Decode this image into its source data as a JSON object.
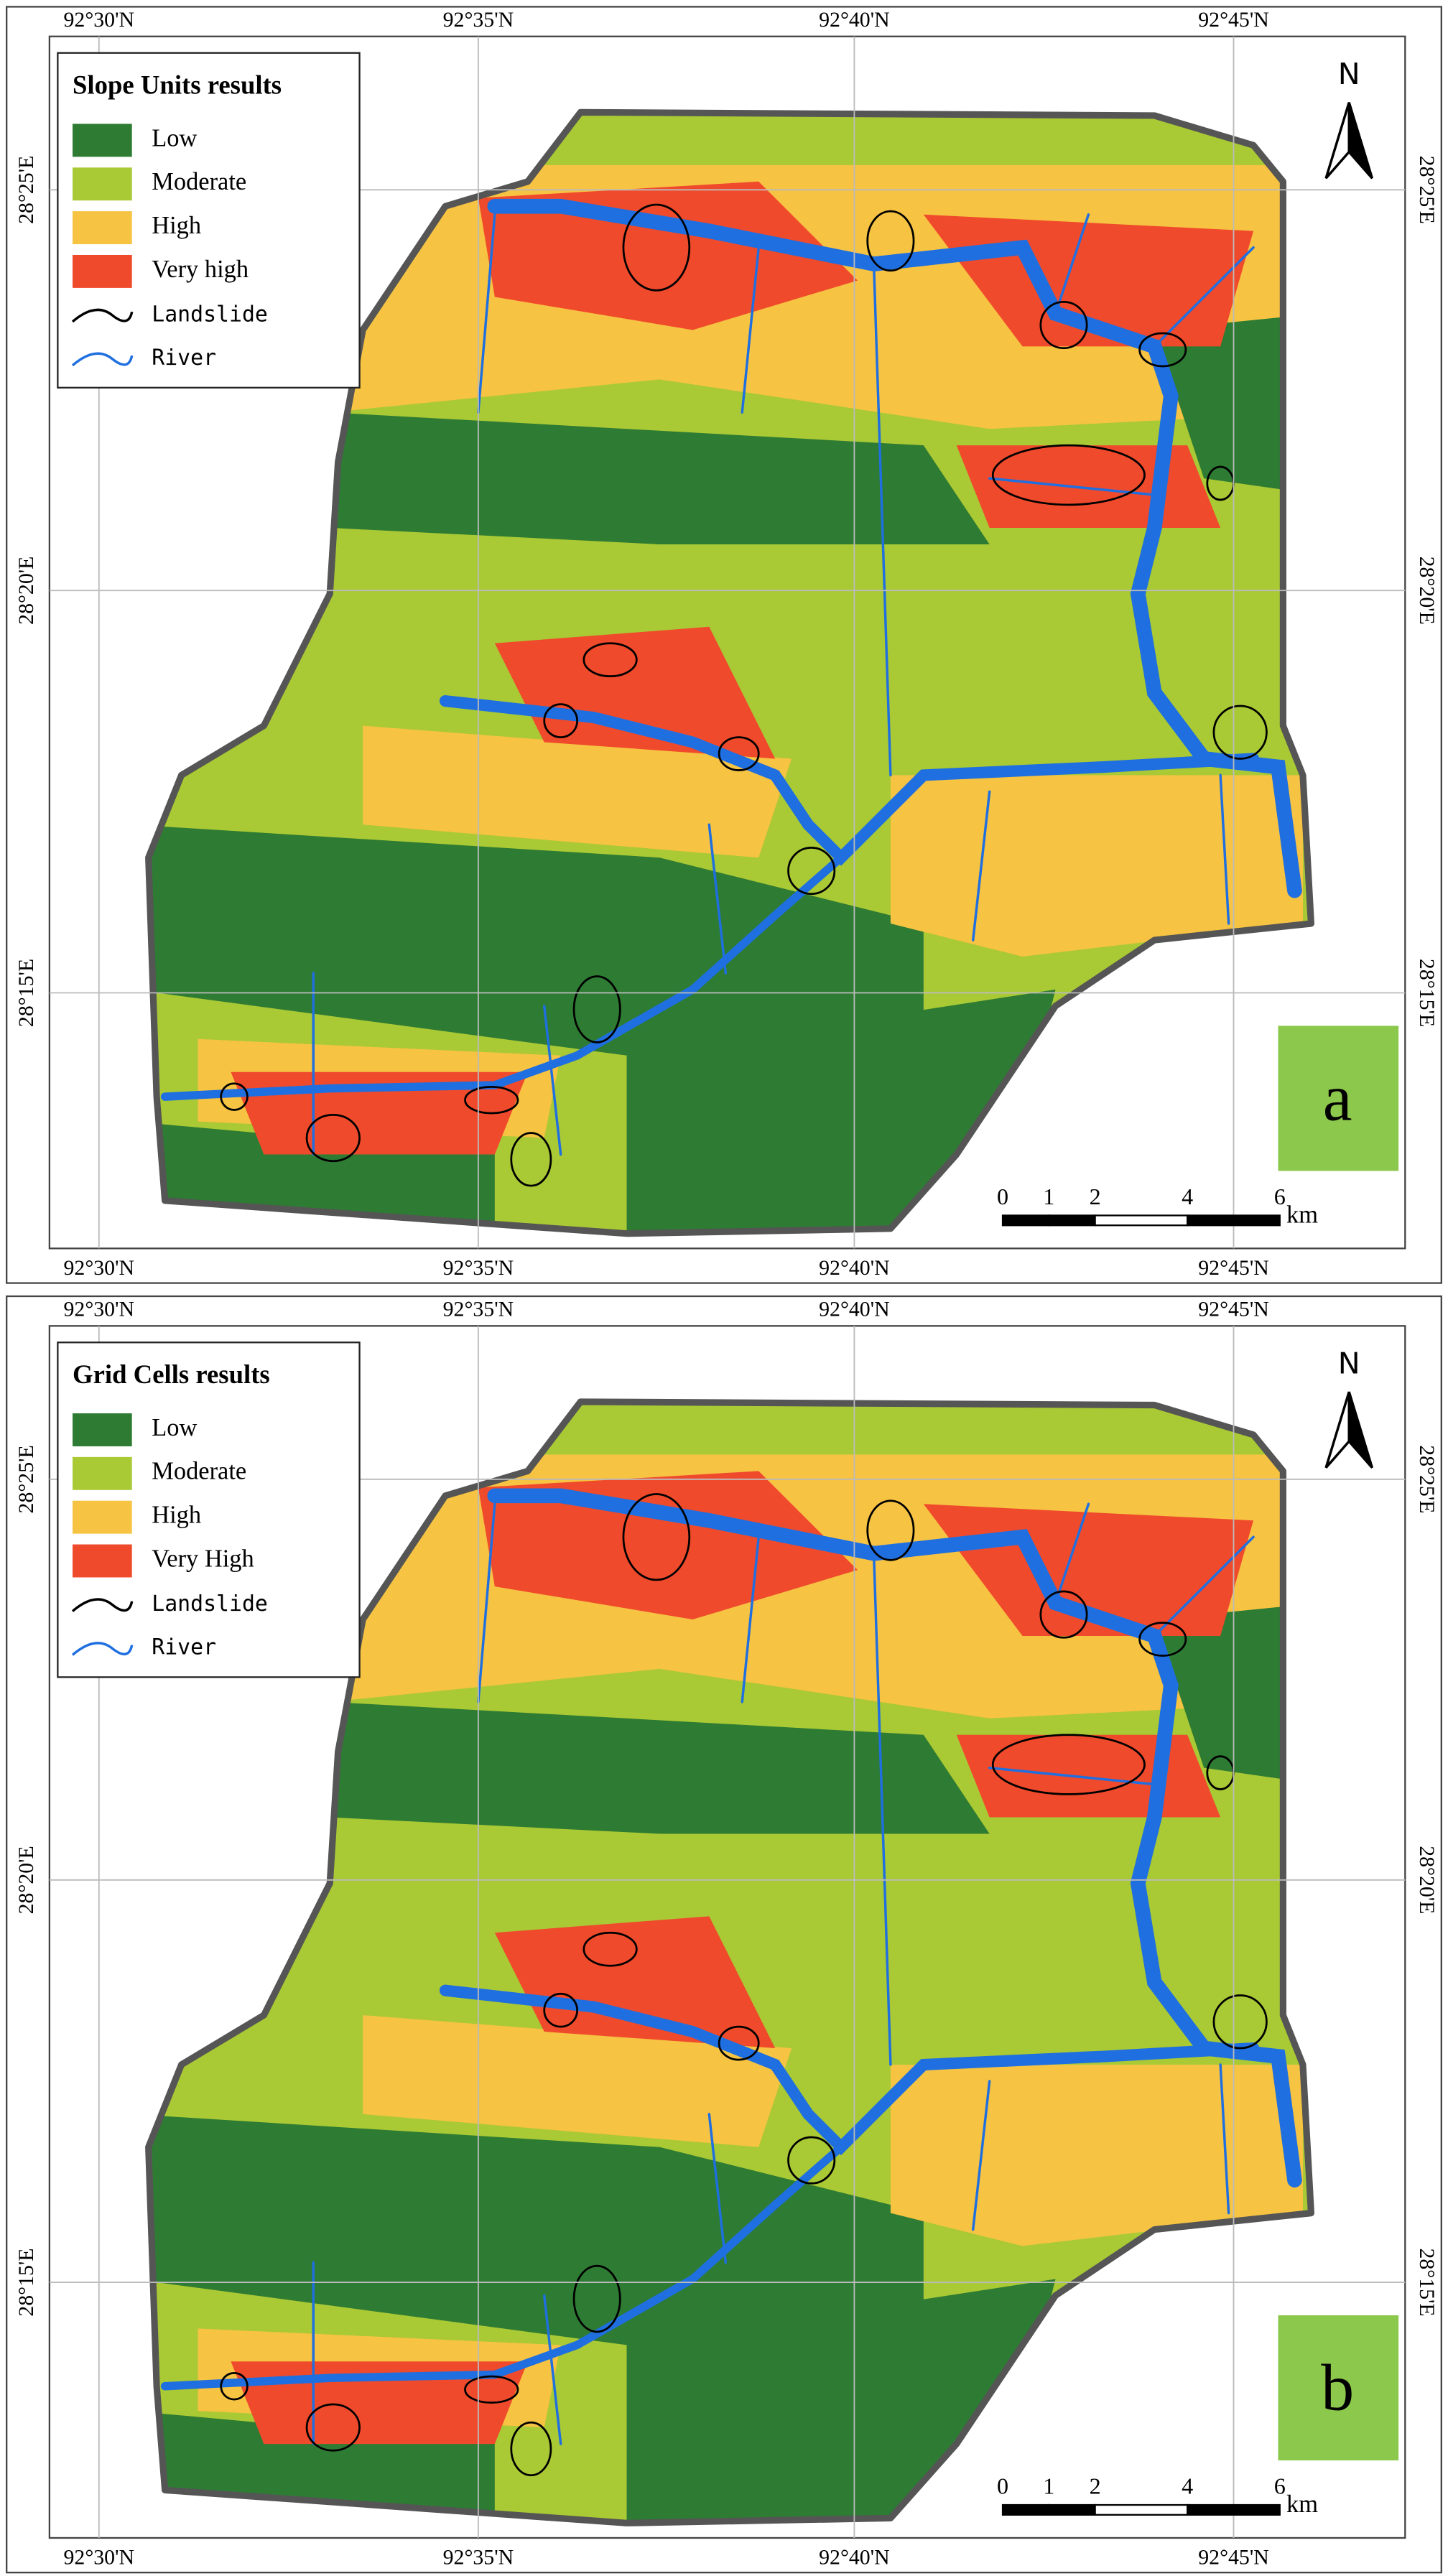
{
  "panels": [
    {
      "legend_title": "Slope Units results",
      "legend": [
        "Low",
        "Moderate",
        "High",
        "Very high",
        "Landslide",
        "River"
      ],
      "top_labels": [
        "92°30'N",
        "92°35'N",
        "92°40'N",
        "92°45'N"
      ],
      "bottom_labels": [
        "92°30'N",
        "92°35'N",
        "92°40'N",
        "92°45'N"
      ],
      "left_labels": [
        "28°25'E",
        "28°20'E",
        "28°15'E"
      ],
      "right_labels": [
        "28°25'E",
        "28°20'E",
        "28°15'E"
      ],
      "north": "N",
      "scale_labels": [
        "0",
        "1",
        "2",
        "4",
        "6"
      ],
      "scale_unit": "km",
      "panel_label": "a"
    },
    {
      "legend_title": "Grid Cells results",
      "legend": [
        "Low",
        "Moderate",
        "High",
        "Very High",
        "Landslide",
        "River"
      ],
      "top_labels": [
        "92°30'N",
        "92°35'N",
        "92°40'N",
        "92°45'N"
      ],
      "bottom_labels": [
        "92°30'N",
        "92°35'N",
        "92°40'N",
        "92°45'N"
      ],
      "left_labels": [
        "28°25'E",
        "28°20'E",
        "28°15'E"
      ],
      "right_labels": [
        "28°25'E",
        "28°20'E",
        "28°15'E"
      ],
      "north": "N",
      "scale_labels": [
        "0",
        "1",
        "2",
        "4",
        "6"
      ],
      "scale_unit": "km",
      "panel_label": "b"
    }
  ]
}
